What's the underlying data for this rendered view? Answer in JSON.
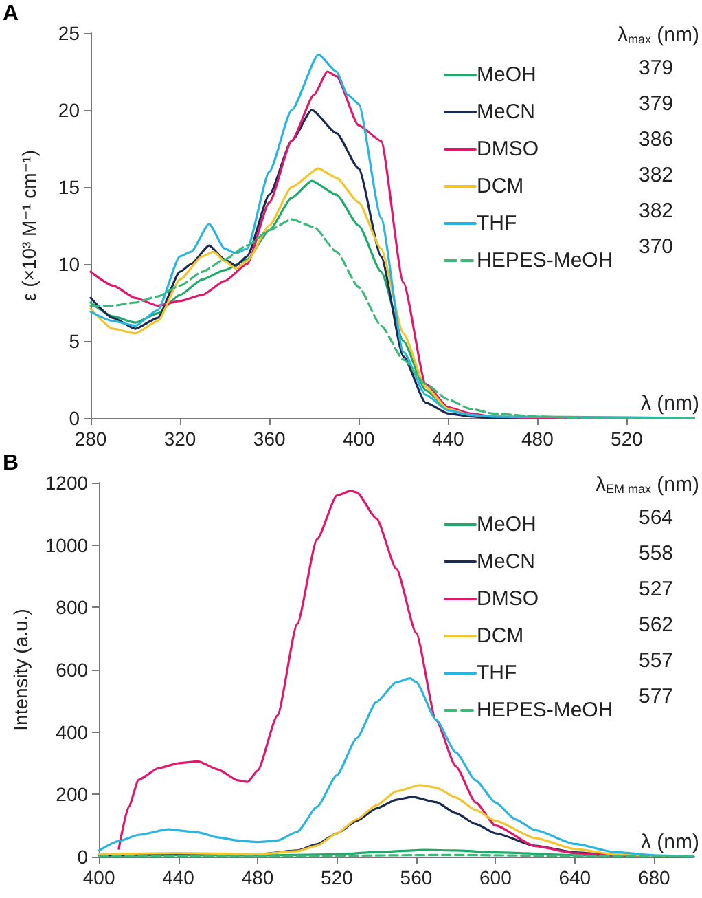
{
  "chart_data": [
    {
      "type": "line",
      "title": "A",
      "xlabel": "λ (nm)",
      "ylabel": "ε (×10³ M⁻¹ cm⁻¹)",
      "legend_title": "λ$_{max}$ (nm)",
      "annotations": [
        "379",
        "379",
        "386",
        "382",
        "382",
        "370"
      ],
      "xlim": [
        280,
        550
      ],
      "xticks": [
        280,
        320,
        360,
        400,
        440,
        480,
        520
      ],
      "ylim": [
        0,
        25
      ],
      "yticks": [
        0,
        5,
        10,
        15,
        20,
        25
      ],
      "grid": false,
      "legend": "top right",
      "marker": "none",
      "series": [
        {
          "name": "MeOH",
          "color": "#1faa6a",
          "x": [
            280,
            290,
            300,
            310,
            320,
            330,
            340,
            350,
            360,
            370,
            379,
            390,
            400,
            410,
            420,
            430,
            440,
            450,
            460,
            480,
            550
          ],
          "values": [
            7.5,
            6.6,
            6.2,
            6.8,
            8.0,
            9.0,
            9.6,
            10.3,
            12.2,
            14.3,
            15.4,
            14.5,
            12.5,
            9.5,
            5.0,
            1.8,
            0.6,
            0.2,
            0,
            0,
            0
          ]
        },
        {
          "name": "MeCN",
          "color": "#1a2a55",
          "x": [
            280,
            290,
            300,
            310,
            320,
            325,
            333,
            340,
            345,
            350,
            360,
            370,
            379,
            390,
            400,
            410,
            420,
            430,
            440,
            450,
            460,
            550
          ],
          "values": [
            7.8,
            6.5,
            5.8,
            6.5,
            9.5,
            10.0,
            11.2,
            10.3,
            9.9,
            10.5,
            14.5,
            18.0,
            20.0,
            18.5,
            16.2,
            10.5,
            4.0,
            1.0,
            0.3,
            0.1,
            0,
            0
          ]
        },
        {
          "name": "DMSO",
          "color": "#e0186c",
          "x": [
            280,
            290,
            300,
            310,
            320,
            330,
            340,
            350,
            360,
            370,
            380,
            386,
            390,
            400,
            410,
            420,
            430,
            440,
            450,
            460,
            480,
            550
          ],
          "values": [
            9.5,
            8.6,
            7.8,
            7.3,
            7.6,
            8.0,
            8.9,
            10.0,
            14.0,
            18.0,
            21.0,
            22.5,
            22.2,
            19.0,
            18.0,
            8.8,
            2.2,
            0.7,
            0.3,
            0.1,
            0,
            0
          ]
        },
        {
          "name": "DCM",
          "color": "#f2c52c",
          "x": [
            280,
            290,
            300,
            310,
            320,
            330,
            335,
            340,
            345,
            350,
            360,
            370,
            382,
            390,
            400,
            410,
            420,
            430,
            440,
            450,
            460,
            550
          ],
          "values": [
            7.1,
            5.8,
            5.5,
            6.3,
            9.0,
            10.5,
            10.8,
            10.2,
            9.7,
            10.2,
            12.5,
            15.0,
            16.2,
            15.6,
            14.0,
            11.0,
            5.5,
            2.0,
            0.6,
            0.2,
            0.1,
            0
          ]
        },
        {
          "name": "THF",
          "color": "#29b5e0",
          "x": [
            280,
            290,
            300,
            310,
            320,
            325,
            333,
            340,
            345,
            350,
            360,
            370,
            382,
            390,
            395,
            400,
            410,
            420,
            430,
            440,
            450,
            460,
            550
          ],
          "values": [
            6.9,
            6.3,
            6.0,
            7.0,
            10.5,
            10.8,
            12.6,
            11.0,
            10.7,
            11.0,
            16.0,
            20.0,
            23.6,
            22.5,
            21.0,
            20.4,
            13.0,
            4.3,
            1.5,
            0.5,
            0.2,
            0.1,
            0
          ]
        },
        {
          "name": "HEPES-MeOH",
          "color": "#3cb878",
          "line_style": "dashed",
          "x": [
            280,
            290,
            300,
            310,
            320,
            330,
            340,
            350,
            360,
            370,
            380,
            390,
            400,
            410,
            420,
            430,
            440,
            450,
            460,
            480,
            500,
            550
          ],
          "values": [
            7.3,
            7.3,
            7.5,
            7.9,
            8.6,
            9.5,
            10.3,
            11.2,
            12.2,
            12.9,
            12.4,
            10.8,
            8.5,
            6.0,
            3.8,
            2.2,
            1.2,
            0.6,
            0.3,
            0.1,
            0,
            0
          ]
        }
      ]
    },
    {
      "type": "line",
      "title": "B",
      "xlabel": "λ (nm)",
      "ylabel": "Intensity (a.u.)",
      "legend_title": "λ$_{EM max}$ (nm)",
      "annotations": [
        "564",
        "558",
        "527",
        "562",
        "557",
        "577"
      ],
      "xlim": [
        400,
        700
      ],
      "xticks": [
        400,
        440,
        480,
        520,
        560,
        600,
        640,
        680
      ],
      "ylim": [
        0,
        1200
      ],
      "yticks": [
        0,
        200,
        400,
        600,
        800,
        1000,
        1200
      ],
      "grid": false,
      "legend": "top right",
      "marker": "none",
      "series": [
        {
          "name": "MeOH",
          "color": "#1faa6a",
          "x": [
            400,
            440,
            480,
            520,
            540,
            564,
            580,
            600,
            640,
            680,
            700
          ],
          "values": [
            3,
            5,
            4,
            8,
            15,
            22,
            20,
            14,
            5,
            1,
            0
          ]
        },
        {
          "name": "MeCN",
          "color": "#1a2a55",
          "x": [
            400,
            440,
            480,
            500,
            510,
            520,
            530,
            540,
            550,
            558,
            570,
            580,
            590,
            600,
            620,
            640,
            660,
            680,
            700
          ],
          "values": [
            5,
            8,
            8,
            20,
            40,
            75,
            115,
            155,
            183,
            192,
            175,
            140,
            105,
            75,
            35,
            14,
            5,
            1,
            0
          ]
        },
        {
          "name": "DMSO",
          "color": "#e0186c",
          "x": [
            410,
            415,
            420,
            430,
            440,
            450,
            460,
            470,
            475,
            480,
            490,
            500,
            510,
            520,
            527,
            530,
            540,
            550,
            560,
            570,
            580,
            590,
            600,
            620,
            640,
            660,
            680,
            700
          ],
          "values": [
            26,
            160,
            247,
            284,
            300,
            306,
            280,
            245,
            240,
            276,
            453,
            747,
            1019,
            1159,
            1174,
            1169,
            1085,
            924,
            718,
            438,
            290,
            174,
            100,
            34,
            12,
            4,
            1,
            0
          ]
        },
        {
          "name": "DCM",
          "color": "#f2c52c",
          "x": [
            400,
            440,
            480,
            500,
            510,
            520,
            530,
            540,
            550,
            562,
            570,
            580,
            590,
            600,
            620,
            640,
            660,
            680,
            700
          ],
          "values": [
            8,
            12,
            8,
            18,
            35,
            75,
            120,
            165,
            210,
            230,
            222,
            190,
            150,
            115,
            60,
            25,
            8,
            2,
            0
          ]
        },
        {
          "name": "THF",
          "color": "#29b5e0",
          "x": [
            400,
            410,
            420,
            435,
            450,
            460,
            470,
            480,
            490,
            500,
            510,
            520,
            530,
            540,
            550,
            557,
            560,
            570,
            580,
            590,
            600,
            610,
            620,
            640,
            660,
            680,
            700
          ],
          "values": [
            20,
            50,
            70,
            88,
            78,
            62,
            52,
            47,
            52,
            80,
            160,
            262,
            380,
            497,
            560,
            572,
            560,
            440,
            335,
            245,
            174,
            120,
            85,
            41,
            15,
            5,
            0
          ]
        },
        {
          "name": "HEPES-MeOH",
          "color": "#3cb878",
          "line_style": "dashed",
          "x": [
            400,
            500,
            577,
            640,
            700
          ],
          "values": [
            1,
            2,
            6,
            2,
            0
          ]
        }
      ]
    }
  ]
}
